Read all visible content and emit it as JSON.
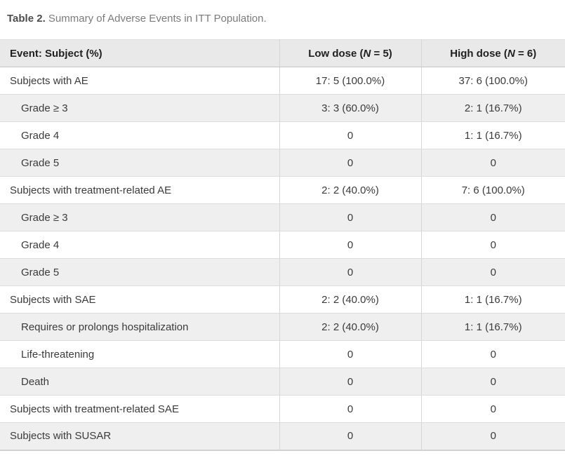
{
  "caption": {
    "label": "Table 2.",
    "text": "Summary of Adverse Events in ITT Population."
  },
  "table": {
    "columns": [
      {
        "label": "Event: Subject (%)"
      },
      {
        "pre": "Low dose (",
        "n": "N",
        "post": " = 5)"
      },
      {
        "pre": "High dose (",
        "n": "N",
        "post": " = 6)"
      }
    ],
    "rows": [
      {
        "label": "Subjects with AE",
        "low": "17: 5 (100.0%)",
        "high": "37: 6 (100.0%)",
        "indent": false
      },
      {
        "label": "Grade ≥ 3",
        "low": "3: 3 (60.0%)",
        "high": "2: 1 (16.7%)",
        "indent": true
      },
      {
        "label": "Grade 4",
        "low": "0",
        "high": "1: 1 (16.7%)",
        "indent": true
      },
      {
        "label": "Grade 5",
        "low": "0",
        "high": "0",
        "indent": true
      },
      {
        "label": "Subjects with treatment-related AE",
        "low": "2: 2 (40.0%)",
        "high": "7: 6 (100.0%)",
        "indent": false
      },
      {
        "label": "Grade ≥ 3",
        "low": "0",
        "high": "0",
        "indent": true
      },
      {
        "label": "Grade 4",
        "low": "0",
        "high": "0",
        "indent": true
      },
      {
        "label": "Grade 5",
        "low": "0",
        "high": "0",
        "indent": true
      },
      {
        "label": "Subjects with SAE",
        "low": "2: 2 (40.0%)",
        "high": "1: 1 (16.7%)",
        "indent": false
      },
      {
        "label": "Requires or prolongs hospitalization",
        "low": "2: 2 (40.0%)",
        "high": "1: 1 (16.7%)",
        "indent": true
      },
      {
        "label": "Life-threatening",
        "low": "0",
        "high": "0",
        "indent": true
      },
      {
        "label": "Death",
        "low": "0",
        "high": "0",
        "indent": true
      },
      {
        "label": "Subjects with treatment-related SAE",
        "low": "0",
        "high": "0",
        "indent": false
      },
      {
        "label": "Subjects with SUSAR",
        "low": "0",
        "high": "0",
        "indent": false
      }
    ]
  },
  "colors": {
    "header_bg": "#e9e9e9",
    "stripe_bg": "#efefef",
    "border": "#dcdcdc",
    "caption_label": "#4d4d4d",
    "caption_text": "#7b7b7b",
    "header_text": "#1f1f1f",
    "body_text": "#3b3b3b"
  }
}
